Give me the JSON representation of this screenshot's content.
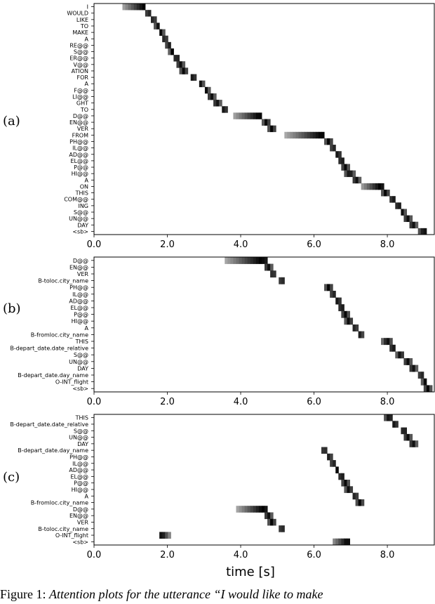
{
  "chart_data": [
    {
      "type": "heatmap",
      "panel_label": "(a)",
      "xlim": [
        0.0,
        9.3
      ],
      "xticks": [
        "0.0",
        "2.0",
        "4.0",
        "6.0",
        "8.0"
      ],
      "xtick_values": [
        0,
        2,
        4,
        6,
        8
      ],
      "show_xlabel": false,
      "rows": [
        {
          "label": "I",
          "start": 0.75,
          "end": 1.4,
          "peak": 1.35
        },
        {
          "label": "WOULD",
          "start": 1.4,
          "end": 1.55,
          "peak": 1.48
        },
        {
          "label": "LIKE",
          "start": 1.55,
          "end": 1.7,
          "peak": 1.62
        },
        {
          "label": "TO",
          "start": 1.65,
          "end": 1.8,
          "peak": 1.73
        },
        {
          "label": "MAKE",
          "start": 1.75,
          "end": 1.9,
          "peak": 1.83
        },
        {
          "label": "A",
          "start": 1.85,
          "end": 2.0,
          "peak": 1.93
        },
        {
          "label": "RE@@",
          "start": 1.95,
          "end": 2.1,
          "peak": 2.03
        },
        {
          "label": "S@@",
          "start": 2.05,
          "end": 2.2,
          "peak": 2.13
        },
        {
          "label": "ER@@",
          "start": 2.15,
          "end": 2.35,
          "peak": 2.25
        },
        {
          "label": "V@@",
          "start": 2.25,
          "end": 2.45,
          "peak": 2.35
        },
        {
          "label": "ATION",
          "start": 2.35,
          "end": 2.55,
          "peak": 2.45
        },
        {
          "label": "FOR",
          "start": 2.6,
          "end": 2.8,
          "peak": 2.7
        },
        {
          "label": "A",
          "start": 2.85,
          "end": 3.0,
          "peak": 2.92
        },
        {
          "label": "F@@",
          "start": 3.0,
          "end": 3.15,
          "peak": 3.07
        },
        {
          "label": "LI@@",
          "start": 3.1,
          "end": 3.3,
          "peak": 3.2
        },
        {
          "label": "GHT",
          "start": 3.25,
          "end": 3.45,
          "peak": 3.35
        },
        {
          "label": "TO",
          "start": 3.45,
          "end": 3.65,
          "peak": 3.55
        },
        {
          "label": "D@@",
          "start": 3.8,
          "end": 4.6,
          "peak": 4.5
        },
        {
          "label": "EN@@",
          "start": 4.6,
          "end": 4.8,
          "peak": 4.7
        },
        {
          "label": "VER",
          "start": 4.75,
          "end": 4.95,
          "peak": 4.85
        },
        {
          "label": "FROM",
          "start": 5.2,
          "end": 6.3,
          "peak": 6.2
        },
        {
          "label": "PH@@",
          "start": 6.3,
          "end": 6.5,
          "peak": 6.4
        },
        {
          "label": "IL@@",
          "start": 6.45,
          "end": 6.6,
          "peak": 6.52
        },
        {
          "label": "AD@@",
          "start": 6.55,
          "end": 6.75,
          "peak": 6.65
        },
        {
          "label": "EL@@",
          "start": 6.65,
          "end": 6.85,
          "peak": 6.75
        },
        {
          "label": "P@@",
          "start": 6.75,
          "end": 6.95,
          "peak": 6.85
        },
        {
          "label": "HI@@",
          "start": 6.85,
          "end": 7.1,
          "peak": 6.97
        },
        {
          "label": "A",
          "start": 7.05,
          "end": 7.25,
          "peak": 7.15
        },
        {
          "label": "ON",
          "start": 7.3,
          "end": 7.9,
          "peak": 7.8
        },
        {
          "label": "THIS",
          "start": 7.85,
          "end": 8.05,
          "peak": 7.95
        },
        {
          "label": "COM@@",
          "start": 8.05,
          "end": 8.25,
          "peak": 8.15
        },
        {
          "label": "ING",
          "start": 8.2,
          "end": 8.4,
          "peak": 8.3
        },
        {
          "label": "S@@",
          "start": 8.35,
          "end": 8.5,
          "peak": 8.42
        },
        {
          "label": "UN@@",
          "start": 8.45,
          "end": 8.65,
          "peak": 8.55
        },
        {
          "label": "DAY",
          "start": 8.6,
          "end": 8.8,
          "peak": 8.7
        },
        {
          "label": "<sb>",
          "start": 8.8,
          "end": 9.1,
          "peak": 9.0
        }
      ]
    },
    {
      "type": "heatmap",
      "panel_label": "(b)",
      "xlim": [
        0.0,
        9.3
      ],
      "xticks": [
        "0.0",
        "2.0",
        "4.0",
        "6.0",
        "8.0"
      ],
      "xtick_values": [
        0,
        2,
        4,
        6,
        8
      ],
      "show_xlabel": false,
      "rows": [
        {
          "label": "D@@",
          "start": 3.6,
          "end": 4.7,
          "peak": 4.55
        },
        {
          "label": "EN@@",
          "start": 4.65,
          "end": 4.85,
          "peak": 4.75
        },
        {
          "label": "VER",
          "start": 4.8,
          "end": 4.95,
          "peak": 4.88
        },
        {
          "label": "B-toloc.city_name",
          "start": 5.05,
          "end": 5.2,
          "peak": 5.12
        },
        {
          "label": "PH@@",
          "start": 6.3,
          "end": 6.5,
          "peak": 6.4
        },
        {
          "label": "IL@@",
          "start": 6.45,
          "end": 6.6,
          "peak": 6.52
        },
        {
          "label": "AD@@",
          "start": 6.55,
          "end": 6.75,
          "peak": 6.65
        },
        {
          "label": "EL@@",
          "start": 6.65,
          "end": 6.85,
          "peak": 6.75
        },
        {
          "label": "P@@",
          "start": 6.75,
          "end": 6.95,
          "peak": 6.85
        },
        {
          "label": "HI@@",
          "start": 6.85,
          "end": 7.05,
          "peak": 6.95
        },
        {
          "label": "A",
          "start": 7.05,
          "end": 7.2,
          "peak": 7.12
        },
        {
          "label": "B-fromloc.city_name",
          "start": 7.2,
          "end": 7.35,
          "peak": 7.27
        },
        {
          "label": "THIS",
          "start": 7.85,
          "end": 8.1,
          "peak": 8.0
        },
        {
          "label": "B-depart_date.date_relative",
          "start": 8.05,
          "end": 8.25,
          "peak": 8.15
        },
        {
          "label": "S@@",
          "start": 8.25,
          "end": 8.45,
          "peak": 8.35
        },
        {
          "label": "UN@@",
          "start": 8.45,
          "end": 8.65,
          "peak": 8.55
        },
        {
          "label": "DAY",
          "start": 8.6,
          "end": 8.8,
          "peak": 8.7
        },
        {
          "label": "B-depart_date.day_name",
          "start": 8.85,
          "end": 9.0,
          "peak": 8.92
        },
        {
          "label": "O-INT_flight",
          "start": 8.95,
          "end": 9.1,
          "peak": 9.02
        },
        {
          "label": "<sb>",
          "start": 9.0,
          "end": 9.2,
          "peak": 9.1
        }
      ]
    },
    {
      "type": "heatmap",
      "panel_label": "(c)",
      "xlim": [
        0.0,
        9.3
      ],
      "xticks": [
        "0.0",
        "2.0",
        "4.0",
        "6.0",
        "8.0"
      ],
      "xtick_values": [
        0,
        2,
        4,
        6,
        8
      ],
      "show_xlabel": true,
      "xlabel": "time [s]",
      "rows": [
        {
          "label": "THIS",
          "start": 7.9,
          "end": 8.15,
          "peak": 8.05
        },
        {
          "label": "B-depart_date.date_relative",
          "start": 8.1,
          "end": 8.3,
          "peak": 8.2
        },
        {
          "label": "S@@",
          "start": 8.35,
          "end": 8.55,
          "peak": 8.45
        },
        {
          "label": "UN@@",
          "start": 8.45,
          "end": 8.65,
          "peak": 8.55
        },
        {
          "label": "DAY",
          "start": 8.6,
          "end": 8.8,
          "peak": 8.7
        },
        {
          "label": "B-depart_date.day_name",
          "start": 6.2,
          "end": 6.35,
          "peak": 6.28
        },
        {
          "label": "PH@@",
          "start": 6.35,
          "end": 6.5,
          "peak": 6.42
        },
        {
          "label": "IL@@",
          "start": 6.45,
          "end": 6.6,
          "peak": 6.52
        },
        {
          "label": "AD@@",
          "start": 6.55,
          "end": 6.7,
          "peak": 6.62
        },
        {
          "label": "EL@@",
          "start": 6.65,
          "end": 6.85,
          "peak": 6.75
        },
        {
          "label": "P@@",
          "start": 6.75,
          "end": 6.95,
          "peak": 6.85
        },
        {
          "label": "HI@@",
          "start": 6.85,
          "end": 7.05,
          "peak": 6.95
        },
        {
          "label": "A",
          "start": 7.05,
          "end": 7.2,
          "peak": 7.12
        },
        {
          "label": "B-fromloc.city_name",
          "start": 7.15,
          "end": 7.35,
          "peak": 7.25
        },
        {
          "label": "D@@",
          "start": 3.9,
          "end": 4.7,
          "peak": 4.6
        },
        {
          "label": "EN@@",
          "start": 4.65,
          "end": 4.85,
          "peak": 4.75
        },
        {
          "label": "VER",
          "start": 4.75,
          "end": 4.95,
          "peak": 4.85
        },
        {
          "label": "B-toloc.city_name",
          "start": 5.05,
          "end": 5.2,
          "peak": 5.12
        },
        {
          "label": "O-INT_flight",
          "start": 1.8,
          "end": 2.1,
          "peak": 1.85
        },
        {
          "label": "<sb>",
          "start": 6.5,
          "end": 7.0,
          "peak": 6.9
        }
      ]
    }
  ],
  "caption": {
    "figure_label": "Figure 1:",
    "text": "Attention plots for the utterance “I would like to make"
  }
}
